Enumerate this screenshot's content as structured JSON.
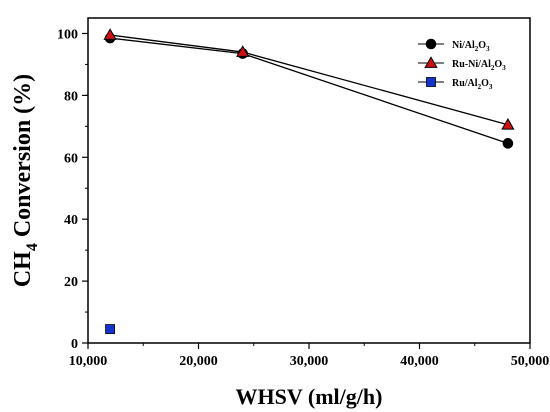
{
  "chart_data": {
    "type": "line",
    "xlabel": "WHSV (ml/g/h)",
    "ylabel": {
      "prefix": "CH",
      "sub": "4",
      "suffix": " Conversion (%)"
    },
    "xlim": [
      10000,
      50000
    ],
    "ylim": [
      0,
      105
    ],
    "x_ticks": [
      10000,
      20000,
      30000,
      40000,
      50000
    ],
    "x_tick_labels": [
      "10,000",
      "20,000",
      "30,000",
      "40,000",
      "50,000"
    ],
    "y_ticks": [
      0,
      20,
      40,
      60,
      80,
      100
    ],
    "y_tick_labels": [
      "0",
      "20",
      "40",
      "60",
      "80",
      "100"
    ],
    "grid": false,
    "legend_position": "top-right",
    "series": [
      {
        "name": "Ni/Al2O3",
        "label_parts": [
          [
            "Ni/Al",
            false
          ],
          [
            "2",
            true
          ],
          [
            "O",
            false
          ],
          [
            "3",
            true
          ]
        ],
        "marker": "circle",
        "color": "#000000",
        "line": true,
        "x": [
          12000,
          24000,
          48000
        ],
        "y": [
          98.5,
          93.5,
          64.5
        ]
      },
      {
        "name": "Ru-Ni/Al2O3",
        "label_parts": [
          [
            "Ru-Ni/Al",
            false
          ],
          [
            "2",
            true
          ],
          [
            "O",
            false
          ],
          [
            "3",
            true
          ]
        ],
        "marker": "triangle",
        "color": "#cc1111",
        "line": true,
        "x": [
          12000,
          24000,
          48000
        ],
        "y": [
          99.5,
          94.0,
          70.5
        ]
      },
      {
        "name": "Ru/Al2O3",
        "label_parts": [
          [
            "Ru/Al",
            false
          ],
          [
            "2",
            true
          ],
          [
            "O",
            false
          ],
          [
            "3",
            true
          ]
        ],
        "marker": "square",
        "color": "#1433cc",
        "line": false,
        "x": [
          12000
        ],
        "y": [
          4.5
        ]
      }
    ]
  }
}
